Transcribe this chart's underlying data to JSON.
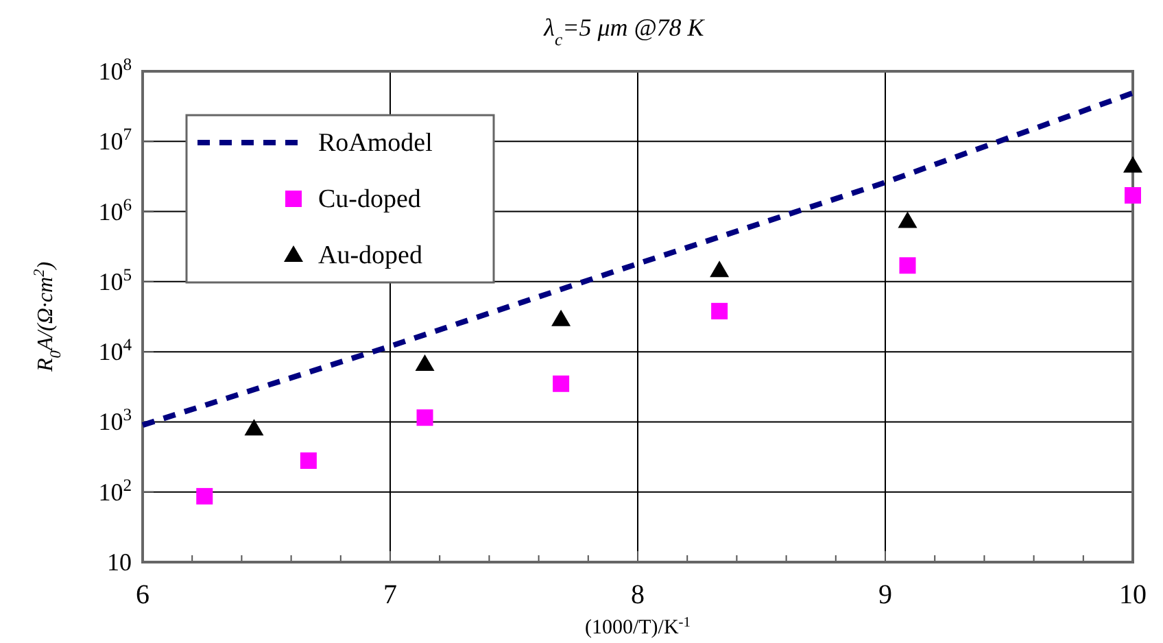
{
  "chart_data": {
    "type": "scatter",
    "title": "λ$_{c}$=5 μm @78 K",
    "xlabel": "(1000/T)/K$^{-1}$",
    "ylabel": "R$_{0}$A/(Ω·cm$^{2}$)",
    "log": "y",
    "grid": true,
    "legend": "top left",
    "xlim": [
      6,
      10
    ],
    "xticks": [
      6,
      {
        "value": 6.2,
        "label": null
      },
      {
        "value": 6.4,
        "label": null
      },
      {
        "value": 6.6,
        "label": null
      },
      {
        "value": 6.8,
        "label": null
      },
      7,
      {
        "value": 7.2,
        "label": null
      },
      {
        "value": 7.4,
        "label": null
      },
      {
        "value": 7.6,
        "label": null
      },
      {
        "value": 7.8,
        "label": null
      },
      8,
      {
        "value": 8.2,
        "label": null
      },
      {
        "value": 8.4,
        "label": null
      },
      {
        "value": 8.6,
        "label": null
      },
      {
        "value": 8.8,
        "label": null
      },
      9,
      {
        "value": 9.2,
        "label": null
      },
      {
        "value": 9.4,
        "label": null
      },
      {
        "value": 9.6,
        "label": null
      },
      {
        "value": 9.8,
        "label": null
      },
      10
    ],
    "ylim": [
      10,
      100000000
    ],
    "yticks": [
      10,
      {
        "value": 100,
        "label": "10$^{2}$"
      },
      {
        "value": 1000,
        "label": "10$^{3}$"
      },
      {
        "value": 10000,
        "label": "10$^{4}$"
      },
      {
        "value": 100000,
        "label": "10$^{5}$"
      },
      {
        "value": 1000000,
        "label": "10$^{6}$"
      },
      {
        "value": 10000000,
        "label": "10$^{7}$"
      },
      {
        "value": 100000000,
        "label": "10$^{8}$"
      }
    ],
    "series": [
      {
        "name": "RoAmodel",
        "type": "line",
        "line_style": "dashed",
        "marker": "none",
        "color": "#000080",
        "x": [
          6,
          7,
          8,
          9,
          10
        ],
        "values": [
          900,
          12000,
          180000,
          2600000,
          49000000
        ]
      },
      {
        "name": "Cu-doped",
        "type": "scatter",
        "marker": "square",
        "color": "#ff00ff",
        "x": [
          6.25,
          6.67,
          7.14,
          7.69,
          8.33,
          9.09,
          10
        ],
        "values": [
          87,
          280,
          1150,
          3500,
          38000,
          170000,
          1700000
        ]
      },
      {
        "name": "Au-doped",
        "type": "scatter",
        "marker": "triangle",
        "color": "#000000",
        "x": [
          6.45,
          7.14,
          7.69,
          8.33,
          9.09,
          10
        ],
        "values": [
          800,
          6700,
          29000,
          145000,
          730000,
          4500000
        ]
      }
    ]
  }
}
